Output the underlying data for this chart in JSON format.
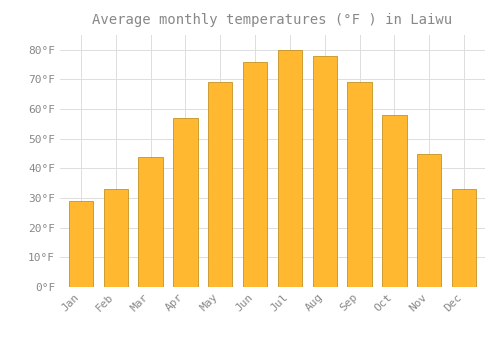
{
  "title": "Average monthly temperatures (°F ) in Laiwu",
  "months": [
    "Jan",
    "Feb",
    "Mar",
    "Apr",
    "May",
    "Jun",
    "Jul",
    "Aug",
    "Sep",
    "Oct",
    "Nov",
    "Dec"
  ],
  "values": [
    29,
    33,
    44,
    57,
    69,
    76,
    80,
    78,
    69,
    58,
    45,
    33
  ],
  "bar_color_top": "#FFB300",
  "bar_color_bottom": "#FFC84A",
  "bar_edge_color": "#B8860B",
  "background_color": "#FFFFFF",
  "plot_bg_color": "#FFFFFF",
  "grid_color": "#DDDDDD",
  "text_color": "#888888",
  "ylim": [
    0,
    85
  ],
  "yticks": [
    0,
    10,
    20,
    30,
    40,
    50,
    60,
    70,
    80
  ],
  "title_fontsize": 10,
  "tick_fontsize": 8,
  "bar_width": 0.7
}
